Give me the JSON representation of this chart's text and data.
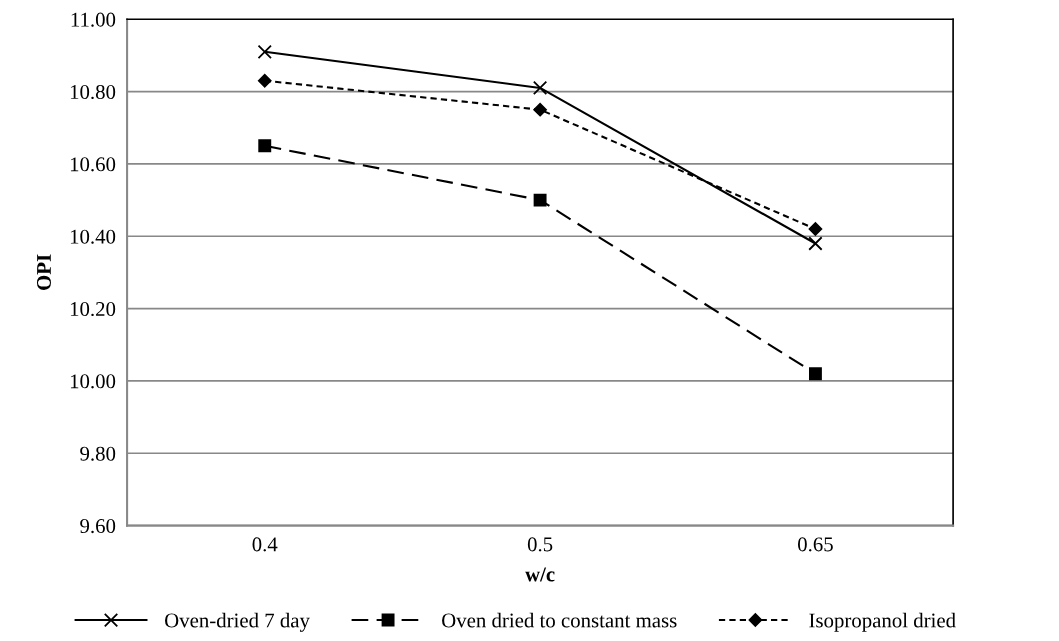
{
  "chart_data": {
    "type": "line",
    "xlabel": "w/c",
    "ylabel": "OPI",
    "categories": [
      "0.4",
      "0.5",
      "0.65"
    ],
    "series": [
      {
        "name": "Oven-dried 7 day",
        "color": "#000000",
        "values": [
          10.91,
          10.81,
          10.38
        ],
        "marker": "cross",
        "line_style": "solid"
      },
      {
        "name": "Oven dried to constant mass",
        "color": "#000000",
        "values": [
          10.65,
          10.5,
          10.02
        ],
        "marker": "square",
        "line_style": "dashed"
      },
      {
        "name": "Isopropanol dried",
        "color": "#000000",
        "values": [
          10.83,
          10.75,
          10.42
        ],
        "marker": "diamond",
        "line_style": "dotted"
      }
    ],
    "ylim": [
      9.6,
      11.0
    ],
    "yticks": [
      {
        "value": 9.6,
        "label": "9.60"
      },
      {
        "value": 9.8,
        "label": "9.80"
      },
      {
        "value": 10.0,
        "label": "10.00"
      },
      {
        "value": 10.2,
        "label": "10.20"
      },
      {
        "value": 10.4,
        "label": "10.40"
      },
      {
        "value": 10.6,
        "label": "10.60"
      },
      {
        "value": 10.8,
        "label": "10.80"
      },
      {
        "value": 11.0,
        "label": "11.00"
      }
    ],
    "grid": "y",
    "legend": "bottom"
  }
}
